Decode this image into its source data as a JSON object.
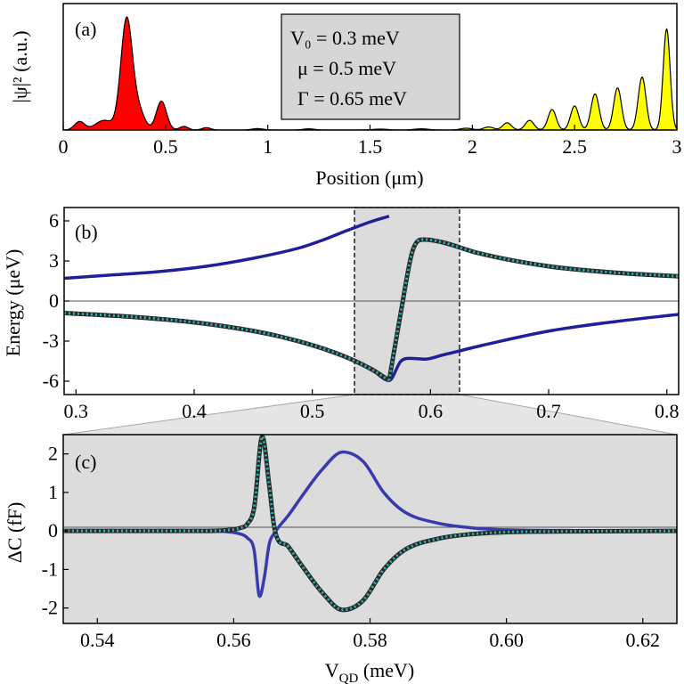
{
  "chart_data": [
    {
      "panel": "a",
      "type": "area",
      "panel_label": "(a)",
      "xlabel": "Position (μm)",
      "ylabel": "|ψ|² (a.u.)",
      "xlim": [
        0,
        3
      ],
      "ylim": [
        0,
        1.05
      ],
      "xticks": [
        0,
        0.5,
        1,
        1.5,
        2,
        2.5,
        3
      ],
      "xtick_labels": [
        "0",
        "0.5",
        "1",
        "1.5",
        "2",
        "2.5",
        "3"
      ],
      "params_box": [
        "V₀ = 0.3 meV",
        "μ = 0.5 meV",
        "Γ = 0.65 meV"
      ],
      "series": [
        {
          "name": "left wavefunction",
          "color": "#ff0000",
          "peaks": [
            {
              "x": 0.08,
              "height": 0.07,
              "width": 0.035
            },
            {
              "x": 0.2,
              "height": 0.08,
              "width": 0.06
            },
            {
              "x": 0.31,
              "height": 0.92,
              "width": 0.04
            },
            {
              "x": 0.37,
              "height": 0.15,
              "width": 0.04
            },
            {
              "x": 0.48,
              "height": 0.24,
              "width": 0.035
            },
            {
              "x": 0.59,
              "height": 0.03,
              "width": 0.03
            },
            {
              "x": 0.7,
              "height": 0.02,
              "width": 0.03
            },
            {
              "x": 0.95,
              "height": 0.012,
              "width": 0.04
            },
            {
              "x": 1.2,
              "height": 0.01,
              "width": 0.04
            }
          ]
        },
        {
          "name": "right wavefunction",
          "color": "#ffff00",
          "peaks": [
            {
              "x": 1.55,
              "height": 0.008,
              "width": 0.05
            },
            {
              "x": 1.75,
              "height": 0.01,
              "width": 0.05
            },
            {
              "x": 1.97,
              "height": 0.015,
              "width": 0.04
            },
            {
              "x": 2.08,
              "height": 0.025,
              "width": 0.035
            },
            {
              "x": 2.17,
              "height": 0.06,
              "width": 0.03
            },
            {
              "x": 2.28,
              "height": 0.08,
              "width": 0.03
            },
            {
              "x": 2.39,
              "height": 0.17,
              "width": 0.028
            },
            {
              "x": 2.5,
              "height": 0.2,
              "width": 0.028
            },
            {
              "x": 2.6,
              "height": 0.3,
              "width": 0.028
            },
            {
              "x": 2.71,
              "height": 0.35,
              "width": 0.027
            },
            {
              "x": 2.83,
              "height": 0.44,
              "width": 0.027
            },
            {
              "x": 2.95,
              "height": 0.84,
              "width": 0.024
            }
          ]
        }
      ]
    },
    {
      "panel": "b",
      "type": "line",
      "panel_label": "(b)",
      "xlabel": "",
      "ylabel": "Energy (μeV)",
      "xlim": [
        0.29,
        0.81
      ],
      "ylim": [
        -7,
        7
      ],
      "xticks": [
        0.3,
        0.4,
        0.5,
        0.6,
        0.7,
        0.8
      ],
      "xtick_labels": [
        "0.3",
        "0.4",
        "0.5",
        "0.6",
        "0.7",
        "0.8"
      ],
      "yticks": [
        -6,
        -3,
        0,
        3,
        6
      ],
      "ytick_labels": [
        "-6",
        "-3",
        "0",
        "3",
        "6"
      ],
      "zoom_window_x": [
        0.535,
        0.625
      ],
      "series": [
        {
          "name": "upper solid",
          "color": "#1f1f9a",
          "style": "solid",
          "x": [
            0.29,
            0.33,
            0.37,
            0.41,
            0.45,
            0.49,
            0.51,
            0.53,
            0.55,
            0.565
          ],
          "y": [
            1.7,
            1.95,
            2.2,
            2.6,
            3.2,
            4.0,
            4.6,
            5.3,
            5.95,
            6.35
          ]
        },
        {
          "name": "lower solid",
          "color": "#1f1f9a",
          "style": "solid",
          "x": [
            0.29,
            0.35,
            0.41,
            0.47,
            0.52,
            0.55,
            0.565,
            0.575,
            0.585,
            0.595,
            0.61,
            0.64,
            0.7,
            0.76,
            0.81
          ],
          "y": [
            -0.9,
            -1.2,
            -1.7,
            -2.6,
            -3.9,
            -5.1,
            -5.95,
            -4.5,
            -4.3,
            -4.35,
            -4.05,
            -3.4,
            -2.25,
            -1.5,
            -1.0
          ]
        },
        {
          "name": "lower dotted",
          "color": "#2ab7b0",
          "style": "dotted",
          "x": [
            0.29,
            0.35,
            0.41,
            0.47,
            0.52,
            0.55,
            0.565
          ],
          "y": [
            -0.9,
            -1.2,
            -1.7,
            -2.6,
            -3.9,
            -5.1,
            -5.95
          ]
        },
        {
          "name": "upper dotted",
          "color": "#2ab7b0",
          "style": "dotted",
          "x": [
            0.565,
            0.575,
            0.585,
            0.595,
            0.61,
            0.64,
            0.7,
            0.76,
            0.81
          ],
          "y": [
            -5.95,
            -0.8,
            3.8,
            4.6,
            4.4,
            3.6,
            2.6,
            2.1,
            1.85
          ]
        }
      ]
    },
    {
      "panel": "c",
      "type": "line",
      "panel_label": "(c)",
      "xlabel": "V_QD (meV)",
      "xlabel_main": "V",
      "xlabel_sub": "QD",
      "xlabel_unit": " (meV)",
      "ylabel": "ΔC (fF)",
      "xlim": [
        0.535,
        0.625
      ],
      "ylim": [
        -2.4,
        2.5
      ],
      "xticks": [
        0.54,
        0.56,
        0.58,
        0.6,
        0.62
      ],
      "xtick_labels": [
        "0.54",
        "0.56",
        "0.58",
        "0.60",
        "0.62"
      ],
      "yticks": [
        -2,
        -1,
        0,
        1,
        2
      ],
      "ytick_labels": [
        "-2",
        "-1",
        "0",
        "1",
        "2"
      ],
      "series": [
        {
          "name": "solid",
          "color": "#3a3ab0",
          "style": "solid",
          "x": [
            0.535,
            0.555,
            0.559,
            0.561,
            0.562,
            0.563,
            0.5638,
            0.5645,
            0.5652,
            0.566,
            0.568,
            0.57,
            0.573,
            0.576,
            0.579,
            0.582,
            0.585,
            0.59,
            0.595,
            0.6,
            0.61,
            0.625
          ],
          "y": [
            0,
            0,
            -0.02,
            -0.08,
            -0.18,
            -0.5,
            -1.7,
            -1.2,
            -0.35,
            -0.05,
            0.4,
            0.9,
            1.6,
            2.05,
            1.8,
            1.0,
            0.5,
            0.2,
            0.08,
            0.03,
            0.01,
            0
          ]
        },
        {
          "name": "dotted",
          "color": "#2ab7b0",
          "style": "dotted",
          "x": [
            0.535,
            0.555,
            0.559,
            0.561,
            0.562,
            0.563,
            0.5642,
            0.5652,
            0.566,
            0.568,
            0.57,
            0.573,
            0.576,
            0.579,
            0.582,
            0.585,
            0.59,
            0.595,
            0.6,
            0.61,
            0.625
          ],
          "y": [
            0,
            0,
            0.02,
            0.08,
            0.18,
            0.6,
            2.45,
            1.2,
            0.05,
            -0.4,
            -0.9,
            -1.6,
            -2.05,
            -1.8,
            -1.0,
            -0.5,
            -0.2,
            -0.08,
            -0.03,
            -0.01,
            0
          ]
        }
      ]
    }
  ]
}
